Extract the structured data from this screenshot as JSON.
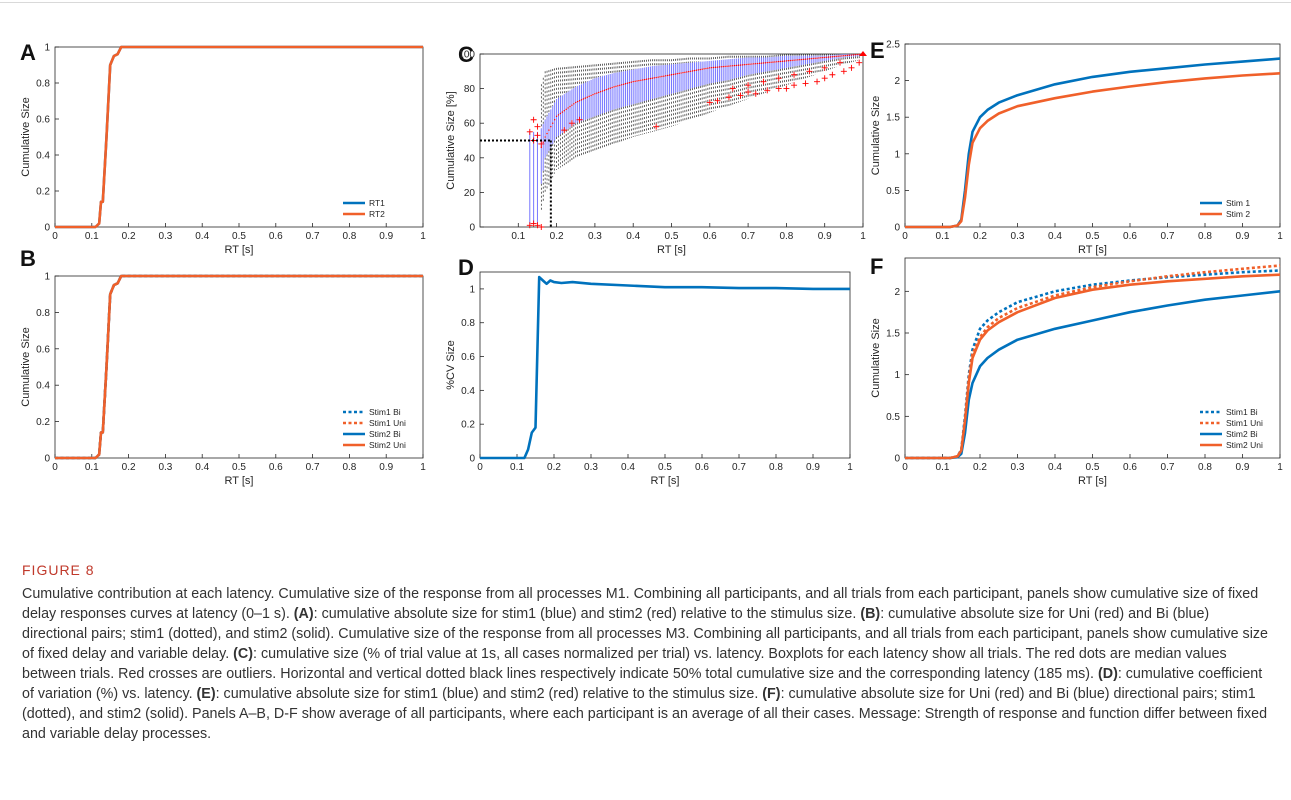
{
  "figure": {
    "label": "FIGURE 8",
    "caption": [
      {
        "t": "Cumulative contribution at each latency. Cumulative size of the response from all processes M1. Combining all participants, and all trials from each participant, panels show cumulative size of fixed delay responses curves at latency (0–1 s). "
      },
      {
        "t": "(A)",
        "b": true
      },
      {
        "t": ": cumulative absolute size for stim1 (blue) and stim2 (red) relative to the stimulus size. "
      },
      {
        "t": "(B)",
        "b": true
      },
      {
        "t": ": cumulative absolute size for Uni (red) and Bi (blue) directional pairs; stim1 (dotted), and stim2 (solid). Cumulative size of the response from all processes M3. Combining all participants, and all trials from each participant, panels show cumulative size of fixed delay and variable delay. "
      },
      {
        "t": "(C)",
        "b": true
      },
      {
        "t": ": cumulative size (% of trial value at 1s, all cases normalized per trial) vs. latency. Boxplots for each latency show all trials. The red dots are median values between trials. Red crosses are outliers. Horizontal and vertical dotted black lines respectively indicate 50% total cumulative size and the corresponding latency (185 ms). "
      },
      {
        "t": "(D)",
        "b": true
      },
      {
        "t": ": cumulative coefficient of variation (%) vs. latency. "
      },
      {
        "t": "(E)",
        "b": true
      },
      {
        "t": ": cumulative absolute size for stim1 (blue) and stim2 (red) relative to the stimulus size. "
      },
      {
        "t": "(F)",
        "b": true
      },
      {
        "t": ": cumulative absolute size for Uni (red) and Bi (blue) directional pairs; stim1 (dotted), and stim2 (solid). Panels A–B, D-F show average of all participants, where each participant is an average of all their cases. Message: Strength of response and function differ between fixed and variable delay processes."
      }
    ]
  },
  "colors": {
    "blue": "#0072BD",
    "orange": "#F0602A",
    "red": "#FF0000",
    "box": "#7777FF",
    "black": "#000000"
  },
  "chart_data": [
    {
      "id": "A",
      "type": "line",
      "xlabel": "RT [s]",
      "ylabel": "Cumulative Size",
      "xlim": [
        0,
        1
      ],
      "ylim": [
        0,
        1
      ],
      "xticks": [
        0,
        0.1,
        0.2,
        0.3,
        0.4,
        0.5,
        0.6,
        0.7,
        0.8,
        0.9,
        1
      ],
      "xtick_labels": [
        "0",
        "0.1",
        "0.2",
        "0.3",
        "0.4",
        "0.5",
        "0.6",
        "0.7",
        "0.8",
        "0.9",
        "1"
      ],
      "yticks": [
        0,
        0.2,
        0.4,
        0.6,
        0.8,
        1
      ],
      "ytick_labels": [
        "0",
        "0.2",
        "0.4",
        "0.6",
        "0.8",
        "1"
      ],
      "legend": "bottom-right",
      "series": [
        {
          "name": "RT1",
          "color": "#0072BD",
          "style": "solid",
          "x": [
            0,
            0.11,
            0.12,
            0.125,
            0.13,
            0.14,
            0.15,
            0.16,
            0.17,
            0.18,
            0.19,
            0.3,
            1
          ],
          "y": [
            0,
            0,
            0.02,
            0.14,
            0.14,
            0.5,
            0.9,
            0.95,
            0.96,
            1,
            1,
            1,
            1
          ]
        },
        {
          "name": "RT2",
          "color": "#F0602A",
          "style": "solid",
          "x": [
            0,
            0.11,
            0.12,
            0.125,
            0.13,
            0.14,
            0.15,
            0.16,
            0.17,
            0.18,
            0.19,
            0.3,
            1
          ],
          "y": [
            0,
            0,
            0.02,
            0.14,
            0.14,
            0.5,
            0.9,
            0.95,
            0.96,
            1,
            1,
            1,
            1
          ]
        }
      ]
    },
    {
      "id": "B",
      "type": "line",
      "xlabel": "RT [s]",
      "ylabel": "Cumulative Size",
      "xlim": [
        0,
        1
      ],
      "ylim": [
        0,
        1
      ],
      "xticks": [
        0,
        0.1,
        0.2,
        0.3,
        0.4,
        0.5,
        0.6,
        0.7,
        0.8,
        0.9,
        1
      ],
      "xtick_labels": [
        "0",
        "0.1",
        "0.2",
        "0.3",
        "0.4",
        "0.5",
        "0.6",
        "0.7",
        "0.8",
        "0.9",
        "1"
      ],
      "yticks": [
        0,
        0.2,
        0.4,
        0.6,
        0.8,
        1
      ],
      "ytick_labels": [
        "0",
        "0.2",
        "0.4",
        "0.6",
        "0.8",
        "1"
      ],
      "legend": "bottom-right",
      "series": [
        {
          "name": "Stim1 Bi",
          "color": "#0072BD",
          "style": "dotted",
          "x": [
            0,
            0.11,
            0.12,
            0.125,
            0.13,
            0.14,
            0.15,
            0.16,
            0.17,
            0.18,
            0.19,
            0.3,
            1
          ],
          "y": [
            0,
            0,
            0.02,
            0.14,
            0.14,
            0.5,
            0.9,
            0.95,
            0.96,
            1,
            1,
            1,
            1
          ]
        },
        {
          "name": "Stim1 Uni",
          "color": "#F0602A",
          "style": "dotted",
          "x": [
            0,
            0.11,
            0.12,
            0.125,
            0.13,
            0.14,
            0.15,
            0.16,
            0.17,
            0.18,
            0.19,
            0.3,
            1
          ],
          "y": [
            0,
            0,
            0.02,
            0.14,
            0.14,
            0.5,
            0.9,
            0.95,
            0.96,
            1,
            1,
            1,
            1
          ]
        },
        {
          "name": "Stim2 Bi",
          "color": "#0072BD",
          "style": "solid",
          "x": [
            0,
            0.11,
            0.12,
            0.125,
            0.13,
            0.14,
            0.15,
            0.16,
            0.17,
            0.18,
            0.19,
            0.3,
            1
          ],
          "y": [
            0,
            0,
            0.02,
            0.14,
            0.14,
            0.5,
            0.9,
            0.95,
            0.96,
            1,
            1,
            1,
            1
          ]
        },
        {
          "name": "Stim2 Uni",
          "color": "#F0602A",
          "style": "solid",
          "x": [
            0,
            0.11,
            0.12,
            0.125,
            0.13,
            0.14,
            0.15,
            0.16,
            0.17,
            0.18,
            0.19,
            0.3,
            1
          ],
          "y": [
            0,
            0,
            0.02,
            0.14,
            0.14,
            0.5,
            0.9,
            0.95,
            0.96,
            1,
            1,
            1,
            1
          ]
        }
      ]
    },
    {
      "id": "C",
      "type": "boxplot",
      "xlabel": "RT [s]",
      "ylabel": "Cumulative Size [%]",
      "xlim": [
        0,
        1
      ],
      "ylim": [
        0,
        100
      ],
      "xticks": [
        0.1,
        0.2,
        0.3,
        0.4,
        0.5,
        0.6,
        0.7,
        0.8,
        0.9,
        1
      ],
      "xtick_labels": [
        "0.1",
        "0.2",
        "0.3",
        "0.4",
        "0.5",
        "0.6",
        "0.7",
        "0.8",
        "0.9",
        "1"
      ],
      "yticks": [
        0,
        20,
        40,
        60,
        80,
        100
      ],
      "ytick_labels": [
        "0",
        "20",
        "40",
        "60",
        "80",
        "100"
      ],
      "reference": {
        "y": 50,
        "x": 0.185
      },
      "box_envelope": {
        "x": [
          0.15,
          0.17,
          0.2,
          0.25,
          0.3,
          0.35,
          0.4,
          0.45,
          0.5,
          0.55,
          0.6,
          0.65,
          0.7,
          0.75,
          0.8,
          0.85,
          0.9,
          0.95,
          1
        ],
        "median": [
          40,
          52,
          64,
          72,
          77,
          81,
          84,
          86,
          88,
          90,
          92,
          93,
          94,
          95,
          96,
          97,
          98,
          99,
          100
        ],
        "q1": [
          10,
          40,
          52,
          60,
          64,
          68,
          71,
          74,
          77,
          80,
          83,
          85,
          88,
          90,
          92,
          94,
          96,
          98,
          99
        ],
        "q3": [
          52,
          62,
          74,
          81,
          86,
          89,
          91,
          93,
          94,
          95,
          96,
          97,
          98,
          98,
          99,
          99,
          99,
          100,
          100
        ],
        "lower_whisker": [
          0,
          20,
          33,
          40,
          44,
          48,
          52,
          55,
          58,
          62,
          66,
          70,
          74,
          78,
          82,
          86,
          90,
          94,
          97
        ],
        "upper_whisker": [
          75,
          90,
          92,
          93,
          94,
          95,
          96,
          97,
          97,
          98,
          98,
          99,
          99,
          99,
          100,
          100,
          100,
          100,
          100
        ]
      },
      "outliers": {
        "x": [
          0.13,
          0.14,
          0.15,
          0.16,
          0.14,
          0.15,
          0.13,
          0.15,
          0.14,
          0.16,
          0.22,
          0.24,
          0.26,
          0.46,
          0.6,
          0.62,
          0.65,
          0.68,
          0.7,
          0.72,
          0.75,
          0.78,
          0.8,
          0.82,
          0.85,
          0.88,
          0.9,
          0.92,
          0.95,
          0.97,
          0.99,
          0.66,
          0.7,
          0.74,
          0.78,
          0.82,
          0.86,
          0.9,
          0.94
        ],
        "y": [
          1,
          2,
          1,
          0,
          62,
          58,
          55,
          53,
          50,
          48,
          56,
          60,
          62,
          58,
          72,
          73,
          75,
          76,
          78,
          77,
          79,
          80,
          80,
          82,
          83,
          84,
          86,
          88,
          90,
          92,
          95,
          80,
          82,
          84,
          86,
          88,
          90,
          92,
          95
        ]
      }
    },
    {
      "id": "D",
      "type": "line",
      "xlabel": "RT [s]",
      "ylabel": "%CV Size",
      "xlim": [
        0,
        1
      ],
      "ylim": [
        0,
        1.1
      ],
      "xticks": [
        0,
        0.1,
        0.2,
        0.3,
        0.4,
        0.5,
        0.6,
        0.7,
        0.8,
        0.9,
        1
      ],
      "xtick_labels": [
        "0",
        "0.1",
        "0.2",
        "0.3",
        "0.4",
        "0.5",
        "0.6",
        "0.7",
        "0.8",
        "0.9",
        "1"
      ],
      "yticks": [
        0,
        0.2,
        0.4,
        0.6,
        0.8,
        1
      ],
      "ytick_labels": [
        "0",
        "0.2",
        "0.4",
        "0.6",
        "0.8",
        "1"
      ],
      "series": [
        {
          "color": "#0072BD",
          "style": "solid",
          "x": [
            0,
            0.12,
            0.13,
            0.14,
            0.15,
            0.16,
            0.17,
            0.18,
            0.19,
            0.2,
            0.22,
            0.25,
            0.3,
            0.4,
            0.5,
            0.6,
            0.7,
            0.8,
            0.9,
            1
          ],
          "y": [
            0,
            0,
            0.05,
            0.15,
            0.18,
            1.07,
            1.05,
            1.03,
            1.05,
            1.04,
            1.035,
            1.04,
            1.03,
            1.02,
            1.01,
            1.01,
            1.005,
            1.005,
            1.0,
            1.0
          ]
        }
      ]
    },
    {
      "id": "E",
      "type": "line",
      "xlabel": "RT [s]",
      "ylabel": "Cumulative Size",
      "xlim": [
        0,
        1
      ],
      "ylim": [
        0,
        2.5
      ],
      "xticks": [
        0,
        0.1,
        0.2,
        0.3,
        0.4,
        0.5,
        0.6,
        0.7,
        0.8,
        0.9,
        1
      ],
      "xtick_labels": [
        "0",
        "0.1",
        "0.2",
        "0.3",
        "0.4",
        "0.5",
        "0.6",
        "0.7",
        "0.8",
        "0.9",
        "1"
      ],
      "yticks": [
        0,
        0.5,
        1,
        1.5,
        2,
        2.5
      ],
      "ytick_labels": [
        "0",
        "0.5",
        "1",
        "1.5",
        "2",
        "2.5"
      ],
      "legend": "bottom-right",
      "series": [
        {
          "name": "Stim 1",
          "color": "#0072BD",
          "style": "solid",
          "x": [
            0,
            0.12,
            0.14,
            0.15,
            0.16,
            0.17,
            0.18,
            0.2,
            0.22,
            0.25,
            0.3,
            0.4,
            0.5,
            0.6,
            0.7,
            0.8,
            0.9,
            1
          ],
          "y": [
            0,
            0,
            0.02,
            0.1,
            0.5,
            1.0,
            1.3,
            1.5,
            1.6,
            1.7,
            1.8,
            1.95,
            2.05,
            2.12,
            2.17,
            2.22,
            2.26,
            2.3
          ]
        },
        {
          "name": "Stim 2",
          "color": "#F0602A",
          "style": "solid",
          "x": [
            0,
            0.12,
            0.14,
            0.15,
            0.16,
            0.17,
            0.18,
            0.2,
            0.22,
            0.25,
            0.3,
            0.4,
            0.5,
            0.6,
            0.7,
            0.8,
            0.9,
            1
          ],
          "y": [
            0,
            0,
            0.02,
            0.08,
            0.4,
            0.85,
            1.15,
            1.35,
            1.45,
            1.55,
            1.65,
            1.76,
            1.85,
            1.92,
            1.98,
            2.03,
            2.07,
            2.1
          ]
        }
      ]
    },
    {
      "id": "F",
      "type": "line",
      "xlabel": "RT [s]",
      "ylabel": "Cumulative Size",
      "xlim": [
        0,
        1
      ],
      "ylim": [
        0,
        2.4
      ],
      "xticks": [
        0,
        0.1,
        0.2,
        0.3,
        0.4,
        0.5,
        0.6,
        0.7,
        0.8,
        0.9,
        1
      ],
      "xtick_labels": [
        "0",
        "0.1",
        "0.2",
        "0.3",
        "0.4",
        "0.5",
        "0.6",
        "0.7",
        "0.8",
        "0.9",
        "1"
      ],
      "yticks": [
        0,
        0.5,
        1,
        1.5,
        2
      ],
      "ytick_labels": [
        "0",
        "0.5",
        "1",
        "1.5",
        "2"
      ],
      "legend": "bottom-right",
      "series": [
        {
          "name": "Stim1 Bi",
          "color": "#0072BD",
          "style": "dotted",
          "x": [
            0,
            0.12,
            0.14,
            0.15,
            0.16,
            0.17,
            0.18,
            0.2,
            0.22,
            0.25,
            0.3,
            0.4,
            0.5,
            0.6,
            0.7,
            0.8,
            0.9,
            1
          ],
          "y": [
            0,
            0,
            0.02,
            0.1,
            0.5,
            1.0,
            1.3,
            1.55,
            1.65,
            1.75,
            1.87,
            2.0,
            2.08,
            2.13,
            2.17,
            2.2,
            2.23,
            2.25
          ]
        },
        {
          "name": "Stim1 Uni",
          "color": "#F0602A",
          "style": "dotted",
          "x": [
            0,
            0.12,
            0.14,
            0.15,
            0.16,
            0.17,
            0.18,
            0.2,
            0.22,
            0.25,
            0.3,
            0.4,
            0.5,
            0.6,
            0.7,
            0.8,
            0.9,
            1
          ],
          "y": [
            0,
            0,
            0.02,
            0.09,
            0.45,
            0.95,
            1.25,
            1.45,
            1.57,
            1.68,
            1.8,
            1.95,
            2.05,
            2.12,
            2.18,
            2.23,
            2.27,
            2.31
          ]
        },
        {
          "name": "Stim2 Bi",
          "color": "#0072BD",
          "style": "solid",
          "x": [
            0,
            0.12,
            0.14,
            0.15,
            0.16,
            0.17,
            0.18,
            0.2,
            0.22,
            0.25,
            0.3,
            0.4,
            0.5,
            0.6,
            0.7,
            0.8,
            0.9,
            1
          ],
          "y": [
            0,
            0,
            0.01,
            0.05,
            0.3,
            0.7,
            0.9,
            1.1,
            1.2,
            1.3,
            1.42,
            1.55,
            1.65,
            1.75,
            1.83,
            1.9,
            1.95,
            2.0
          ]
        },
        {
          "name": "Stim2 Uni",
          "color": "#F0602A",
          "style": "solid",
          "x": [
            0,
            0.12,
            0.14,
            0.15,
            0.16,
            0.17,
            0.18,
            0.2,
            0.22,
            0.25,
            0.3,
            0.4,
            0.5,
            0.6,
            0.7,
            0.8,
            0.9,
            1
          ],
          "y": [
            0,
            0,
            0.02,
            0.09,
            0.45,
            0.9,
            1.2,
            1.42,
            1.53,
            1.63,
            1.75,
            1.92,
            2.02,
            2.08,
            2.12,
            2.15,
            2.18,
            2.2
          ]
        }
      ]
    }
  ]
}
